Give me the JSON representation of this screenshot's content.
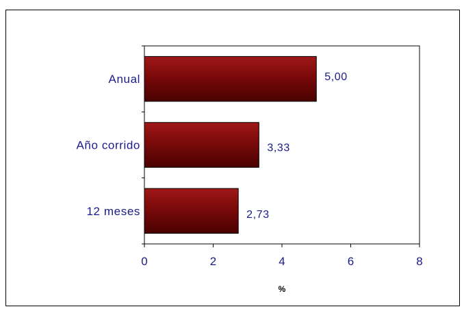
{
  "chart_data": {
    "type": "bar",
    "orientation": "horizontal",
    "categories": [
      "Anual",
      "Año corrido",
      "12 meses"
    ],
    "values": [
      5.0,
      3.33,
      2.73
    ],
    "value_labels": [
      "5,00",
      "3,33",
      "2,73"
    ],
    "xlim": [
      0,
      8
    ],
    "xticks": [
      0,
      2,
      4,
      6,
      8
    ],
    "xtick_labels": [
      "0",
      "2",
      "4",
      "6",
      "8"
    ],
    "xlabel": "%",
    "grid": false,
    "legend": "none",
    "bar_color": "#7a0a0a",
    "label_color": "#1a1a8c"
  }
}
